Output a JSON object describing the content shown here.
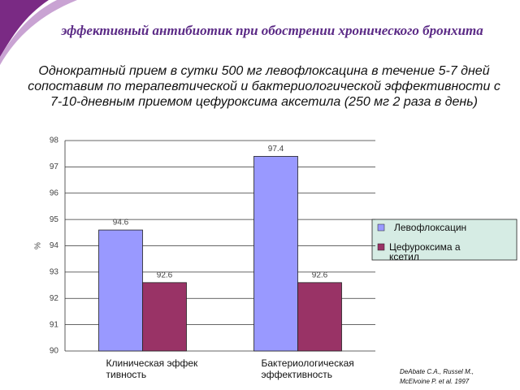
{
  "header": {
    "title": "эффективный антибиотик при обострении хронического бронхита",
    "subtitle": "Однократный прием в сутки 500 мг левофлоксацина в течение 5-7 дней сопоставим по терапевтической и бактериологической эффективности с 7-10-дневным приемом цефуроксима аксетила (250 мг 2 раза в день)"
  },
  "chart_data": {
    "type": "bar",
    "ylabel": "%",
    "categories": [
      "Клиническая эффективность",
      "Бактериологическая эффективность"
    ],
    "series": [
      {
        "name": "Левофлоксацин",
        "color": "#9999ff",
        "values": [
          94.6,
          97.4
        ]
      },
      {
        "name": "Цефуроксима аксетил",
        "color": "#993366",
        "values": [
          92.6,
          92.6
        ]
      }
    ],
    "ylim": [
      90,
      98
    ],
    "yticks": [
      90,
      91,
      92,
      93,
      94,
      95,
      96,
      97,
      98
    ],
    "grid": true,
    "legend": "right"
  },
  "citation": "DeAbate C.A., Russel M., McElvoine P. et al. 1997"
}
